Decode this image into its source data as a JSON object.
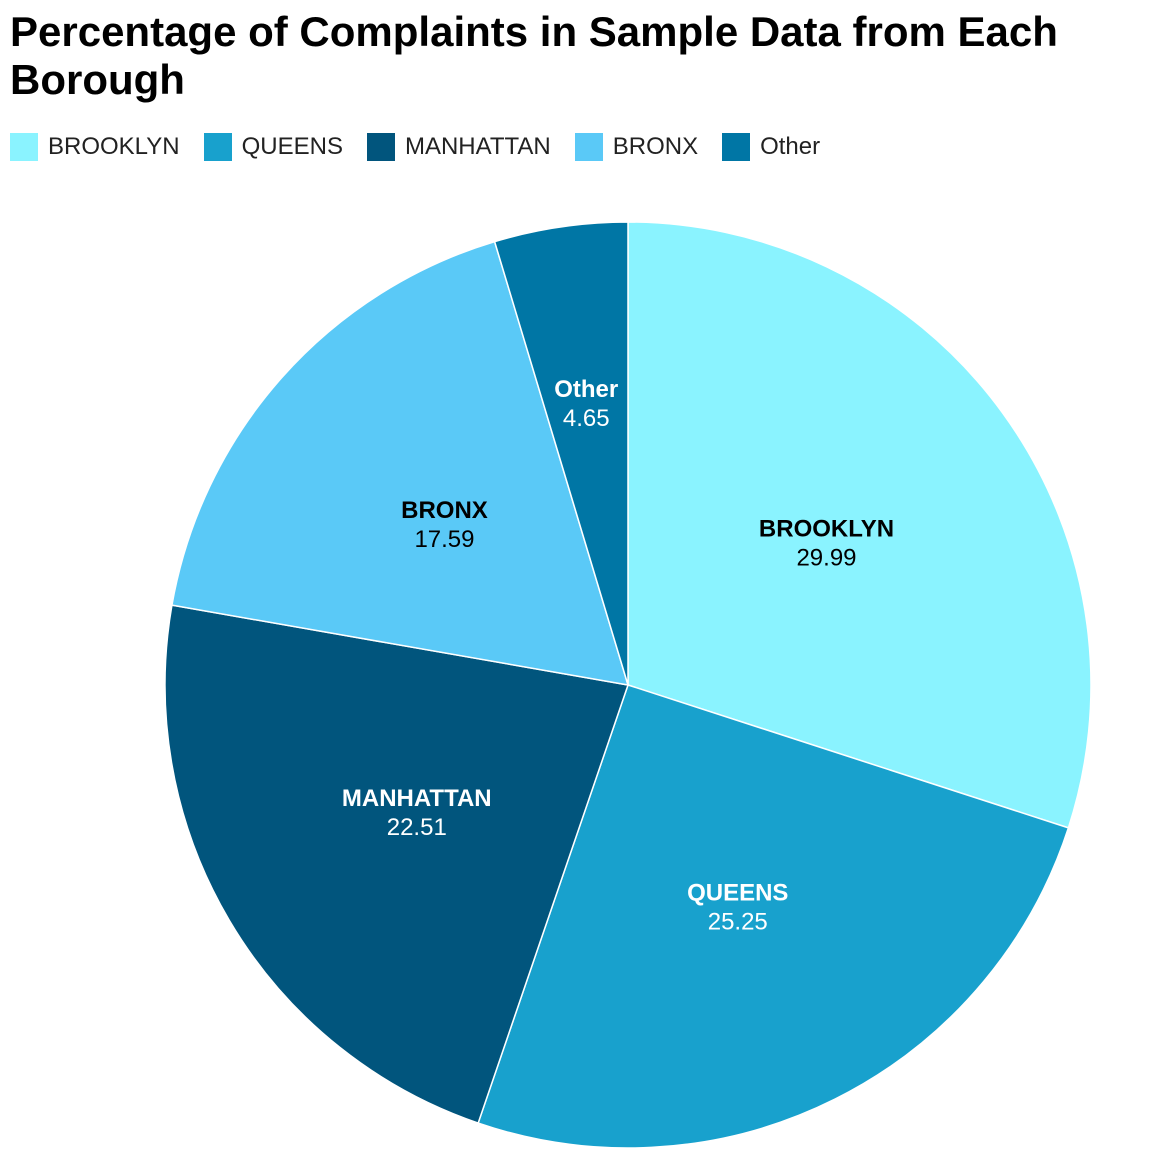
{
  "chart_data": {
    "type": "pie",
    "title": "Percentage of Complaints in Sample Data from Each Borough",
    "legend_position": "top-left",
    "slices": [
      {
        "label": "BROOKLYN",
        "value": 29.99,
        "color": "#8AF3FF",
        "label_color": "#000000"
      },
      {
        "label": "QUEENS",
        "value": 25.25,
        "color": "#18A1CD",
        "label_color": "#FFFFFF"
      },
      {
        "label": "MANHATTAN",
        "value": 22.51,
        "color": "#01557D",
        "label_color": "#FFFFFF"
      },
      {
        "label": "BRONX",
        "value": 17.59,
        "color": "#5AC9F7",
        "label_color": "#000000"
      },
      {
        "label": "Other",
        "value": 4.65,
        "color": "#0076A5",
        "label_color": "#FFFFFF"
      }
    ]
  }
}
